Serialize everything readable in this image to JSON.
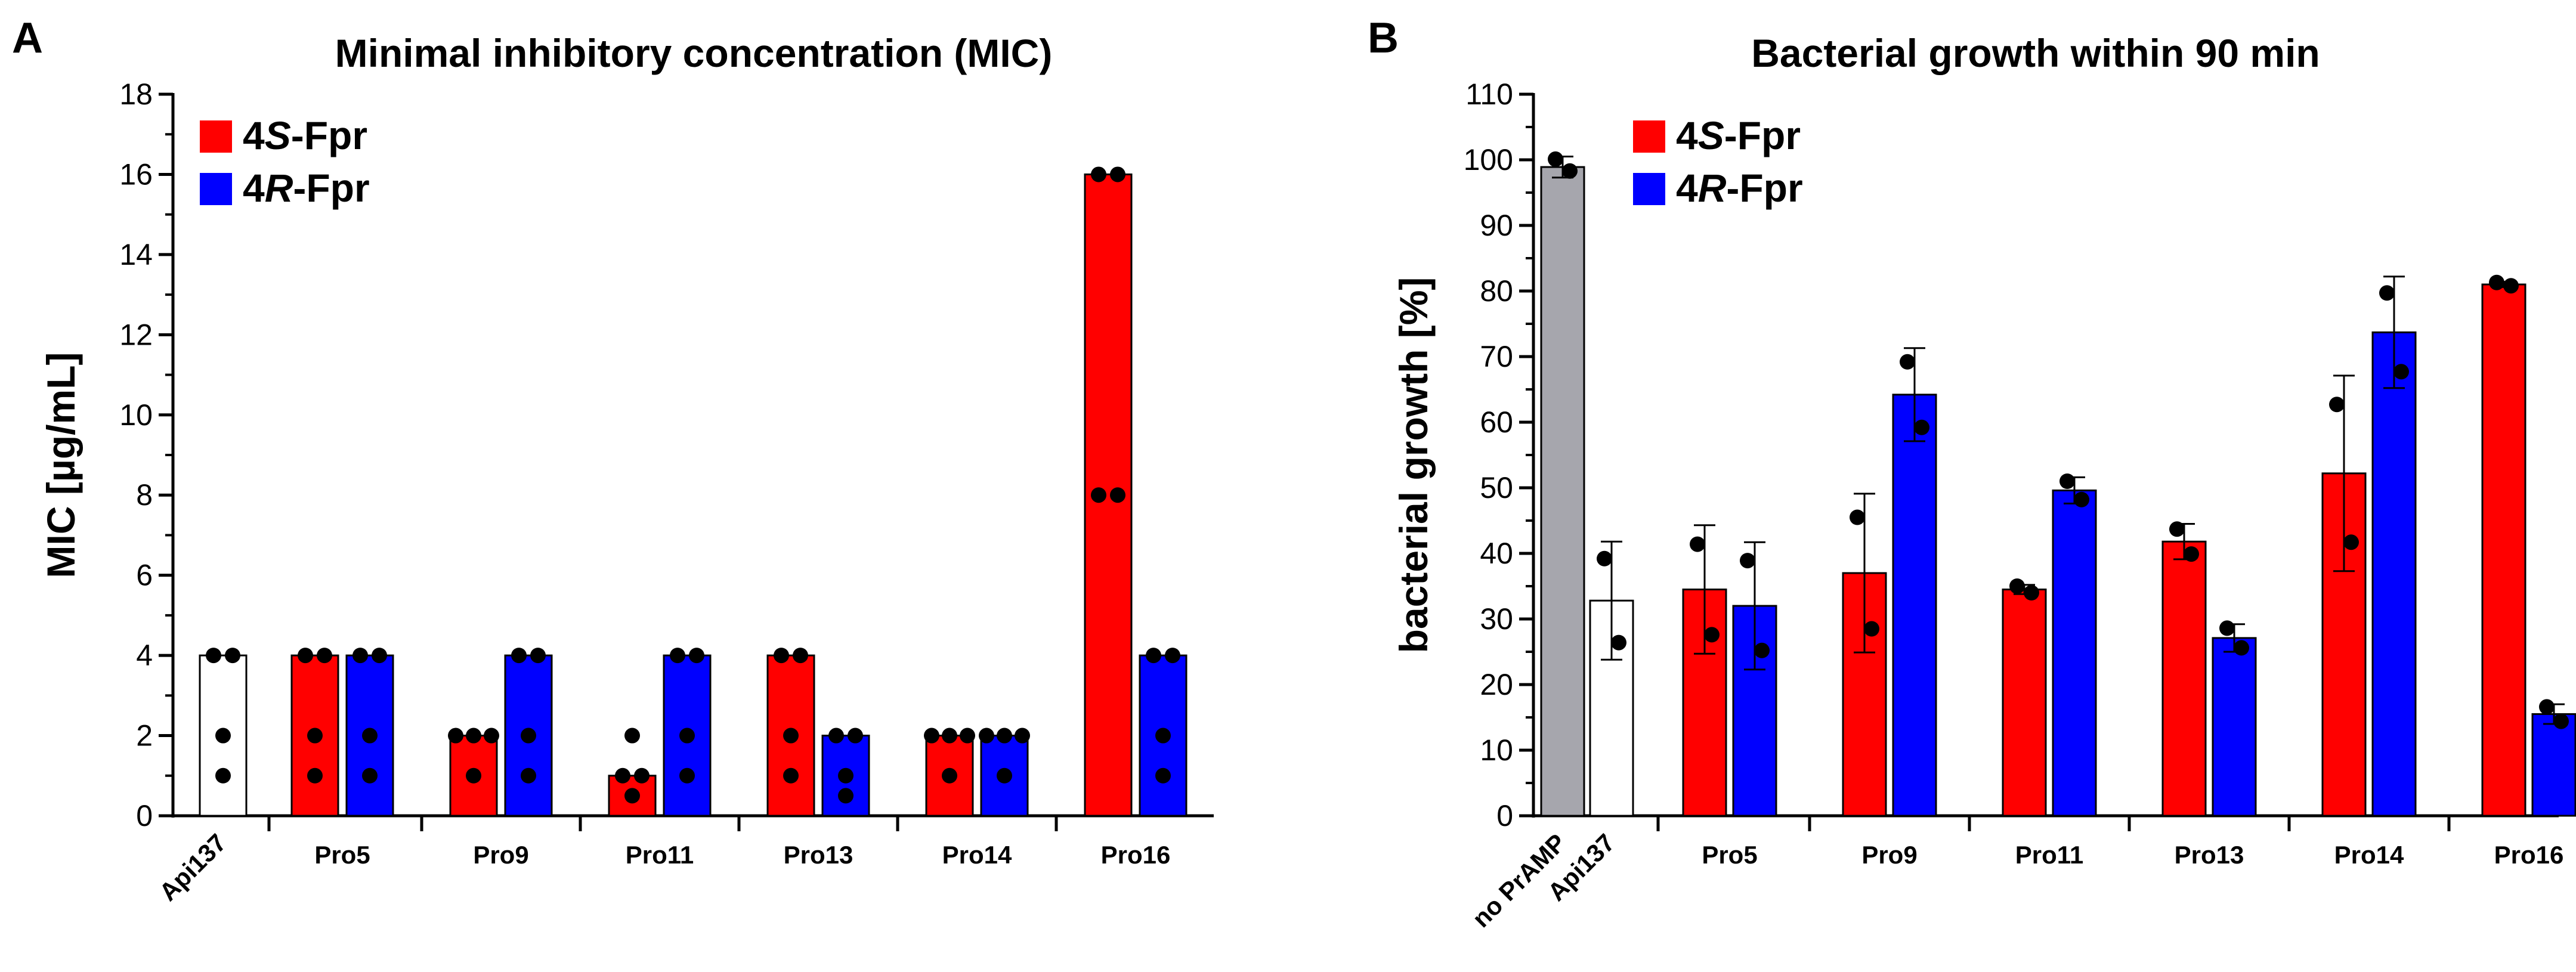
{
  "panels": [
    {
      "letter": "A",
      "chart_data": {
        "type": "bar",
        "title": "Minimal inhibitory concentration (MIC)",
        "xlabel": "",
        "ylabel": "MIC [µg/mL]",
        "ylim": [
          0,
          18
        ],
        "yticks": [
          0,
          2,
          4,
          6,
          8,
          10,
          12,
          14,
          16,
          18
        ],
        "grid": false,
        "legend_position": "top-left",
        "legend": [
          {
            "prefix": "4",
            "italic": "S",
            "suffix": "-Fpr",
            "color": "#ff0000"
          },
          {
            "prefix": "4",
            "italic": "R",
            "suffix": "-Fpr",
            "color": "#0000ff"
          }
        ],
        "groups": [
          {
            "label": "Api137",
            "rotated": true,
            "bars": [
              {
                "series": "reference",
                "color": "#ffffff",
                "value": 4,
                "points": [
                  4,
                  4,
                  2,
                  1
                ]
              }
            ]
          },
          {
            "label": "Pro5",
            "bars": [
              {
                "series": "4S-Fpr",
                "color": "#ff0000",
                "value": 4,
                "points": [
                  4,
                  4,
                  2,
                  1
                ]
              },
              {
                "series": "4R-Fpr",
                "color": "#0000ff",
                "value": 4,
                "points": [
                  4,
                  4,
                  2,
                  1
                ]
              }
            ]
          },
          {
            "label": "Pro9",
            "bars": [
              {
                "series": "4S-Fpr",
                "color": "#ff0000",
                "value": 2,
                "points": [
                  2,
                  2,
                  2,
                  1
                ]
              },
              {
                "series": "4R-Fpr",
                "color": "#0000ff",
                "value": 4,
                "points": [
                  4,
                  4,
                  2,
                  1
                ]
              }
            ]
          },
          {
            "label": "Pro11",
            "bars": [
              {
                "series": "4S-Fpr",
                "color": "#ff0000",
                "value": 1,
                "points": [
                  2,
                  1,
                  1,
                  0.5
                ]
              },
              {
                "series": "4R-Fpr",
                "color": "#0000ff",
                "value": 4,
                "points": [
                  4,
                  4,
                  2,
                  1
                ]
              }
            ]
          },
          {
            "label": "Pro13",
            "bars": [
              {
                "series": "4S-Fpr",
                "color": "#ff0000",
                "value": 4,
                "points": [
                  4,
                  4,
                  2,
                  1
                ]
              },
              {
                "series": "4R-Fpr",
                "color": "#0000ff",
                "value": 2,
                "points": [
                  2,
                  2,
                  1,
                  0.5
                ]
              }
            ]
          },
          {
            "label": "Pro14",
            "bars": [
              {
                "series": "4S-Fpr",
                "color": "#ff0000",
                "value": 2,
                "points": [
                  2,
                  2,
                  2,
                  1
                ]
              },
              {
                "series": "4R-Fpr",
                "color": "#0000ff",
                "value": 2,
                "points": [
                  2,
                  2,
                  2,
                  1
                ]
              }
            ]
          },
          {
            "label": "Pro16",
            "bars": [
              {
                "series": "4S-Fpr",
                "color": "#ff0000",
                "value": 16,
                "points": [
                  16,
                  16,
                  8,
                  8
                ]
              },
              {
                "series": "4R-Fpr",
                "color": "#0000ff",
                "value": 4,
                "points": [
                  4,
                  4,
                  2,
                  1
                ]
              }
            ]
          }
        ]
      }
    },
    {
      "letter": "B",
      "chart_data": {
        "type": "bar",
        "title": "Bacterial growth within 90 min",
        "xlabel": "",
        "ylabel": "bacterial growth [%]",
        "ylim": [
          0,
          110
        ],
        "yticks": [
          0,
          10,
          20,
          30,
          40,
          50,
          60,
          70,
          80,
          90,
          100,
          110
        ],
        "grid": false,
        "legend_position": "top-left",
        "legend": [
          {
            "prefix": "4",
            "italic": "S",
            "suffix": "-Fpr",
            "color": "#ff0000"
          },
          {
            "prefix": "4",
            "italic": "R",
            "suffix": "-Fpr",
            "color": "#0000ff"
          }
        ],
        "groups": [
          {
            "label": "no PrAMP",
            "rotated": true,
            "bars": [
              {
                "series": "control",
                "color": "#a6a6ad",
                "value": 98.9,
                "error": 1.6,
                "points": [
                  100.1,
                  98.3
                ]
              }
            ]
          },
          {
            "label": "Api137",
            "rotated": true,
            "bars": [
              {
                "series": "reference",
                "color": "#ffffff",
                "value": 32.8,
                "error": 9.0,
                "points": [
                  39.2,
                  26.4
                ]
              }
            ]
          },
          {
            "label": "Pro5",
            "bars": [
              {
                "series": "4S-Fpr",
                "color": "#ff0000",
                "value": 34.5,
                "error": 9.8,
                "points": [
                  41.4,
                  27.6
                ]
              },
              {
                "series": "4R-Fpr",
                "color": "#0000ff",
                "value": 32.0,
                "error": 9.7,
                "points": [
                  38.9,
                  25.2
                ]
              }
            ]
          },
          {
            "label": "Pro9",
            "bars": [
              {
                "series": "4S-Fpr",
                "color": "#ff0000",
                "value": 37.0,
                "error": 12.1,
                "points": [
                  45.5,
                  28.5
                ]
              },
              {
                "series": "4R-Fpr",
                "color": "#0000ff",
                "value": 64.2,
                "error": 7.1,
                "points": [
                  69.2,
                  59.2
                ]
              }
            ]
          },
          {
            "label": "Pro11",
            "bars": [
              {
                "series": "4S-Fpr",
                "color": "#ff0000",
                "value": 34.5,
                "error": 0.7,
                "points": [
                  35.0,
                  34.0
                ]
              },
              {
                "series": "4R-Fpr",
                "color": "#0000ff",
                "value": 49.6,
                "error": 2.0,
                "points": [
                  51.0,
                  48.2
                ]
              }
            ]
          },
          {
            "label": "Pro13",
            "bars": [
              {
                "series": "4S-Fpr",
                "color": "#ff0000",
                "value": 41.8,
                "error": 2.7,
                "points": [
                  43.7,
                  39.9
                ]
              },
              {
                "series": "4R-Fpr",
                "color": "#0000ff",
                "value": 27.1,
                "error": 2.1,
                "points": [
                  28.6,
                  25.6
                ]
              }
            ]
          },
          {
            "label": "Pro14",
            "bars": [
              {
                "series": "4S-Fpr",
                "color": "#ff0000",
                "value": 52.2,
                "error": 14.9,
                "points": [
                  62.7,
                  41.7
                ]
              },
              {
                "series": "4R-Fpr",
                "color": "#0000ff",
                "value": 73.7,
                "error": 8.5,
                "points": [
                  79.7,
                  67.7
                ]
              }
            ]
          },
          {
            "label": "Pro16",
            "bars": [
              {
                "series": "4S-Fpr",
                "color": "#ff0000",
                "value": 81.0,
                "error": 0.4,
                "points": [
                  81.3,
                  80.8
                ]
              },
              {
                "series": "4R-Fpr",
                "color": "#0000ff",
                "value": 15.5,
                "error": 1.5,
                "points": [
                  16.6,
                  14.4
                ]
              }
            ]
          }
        ]
      }
    }
  ]
}
